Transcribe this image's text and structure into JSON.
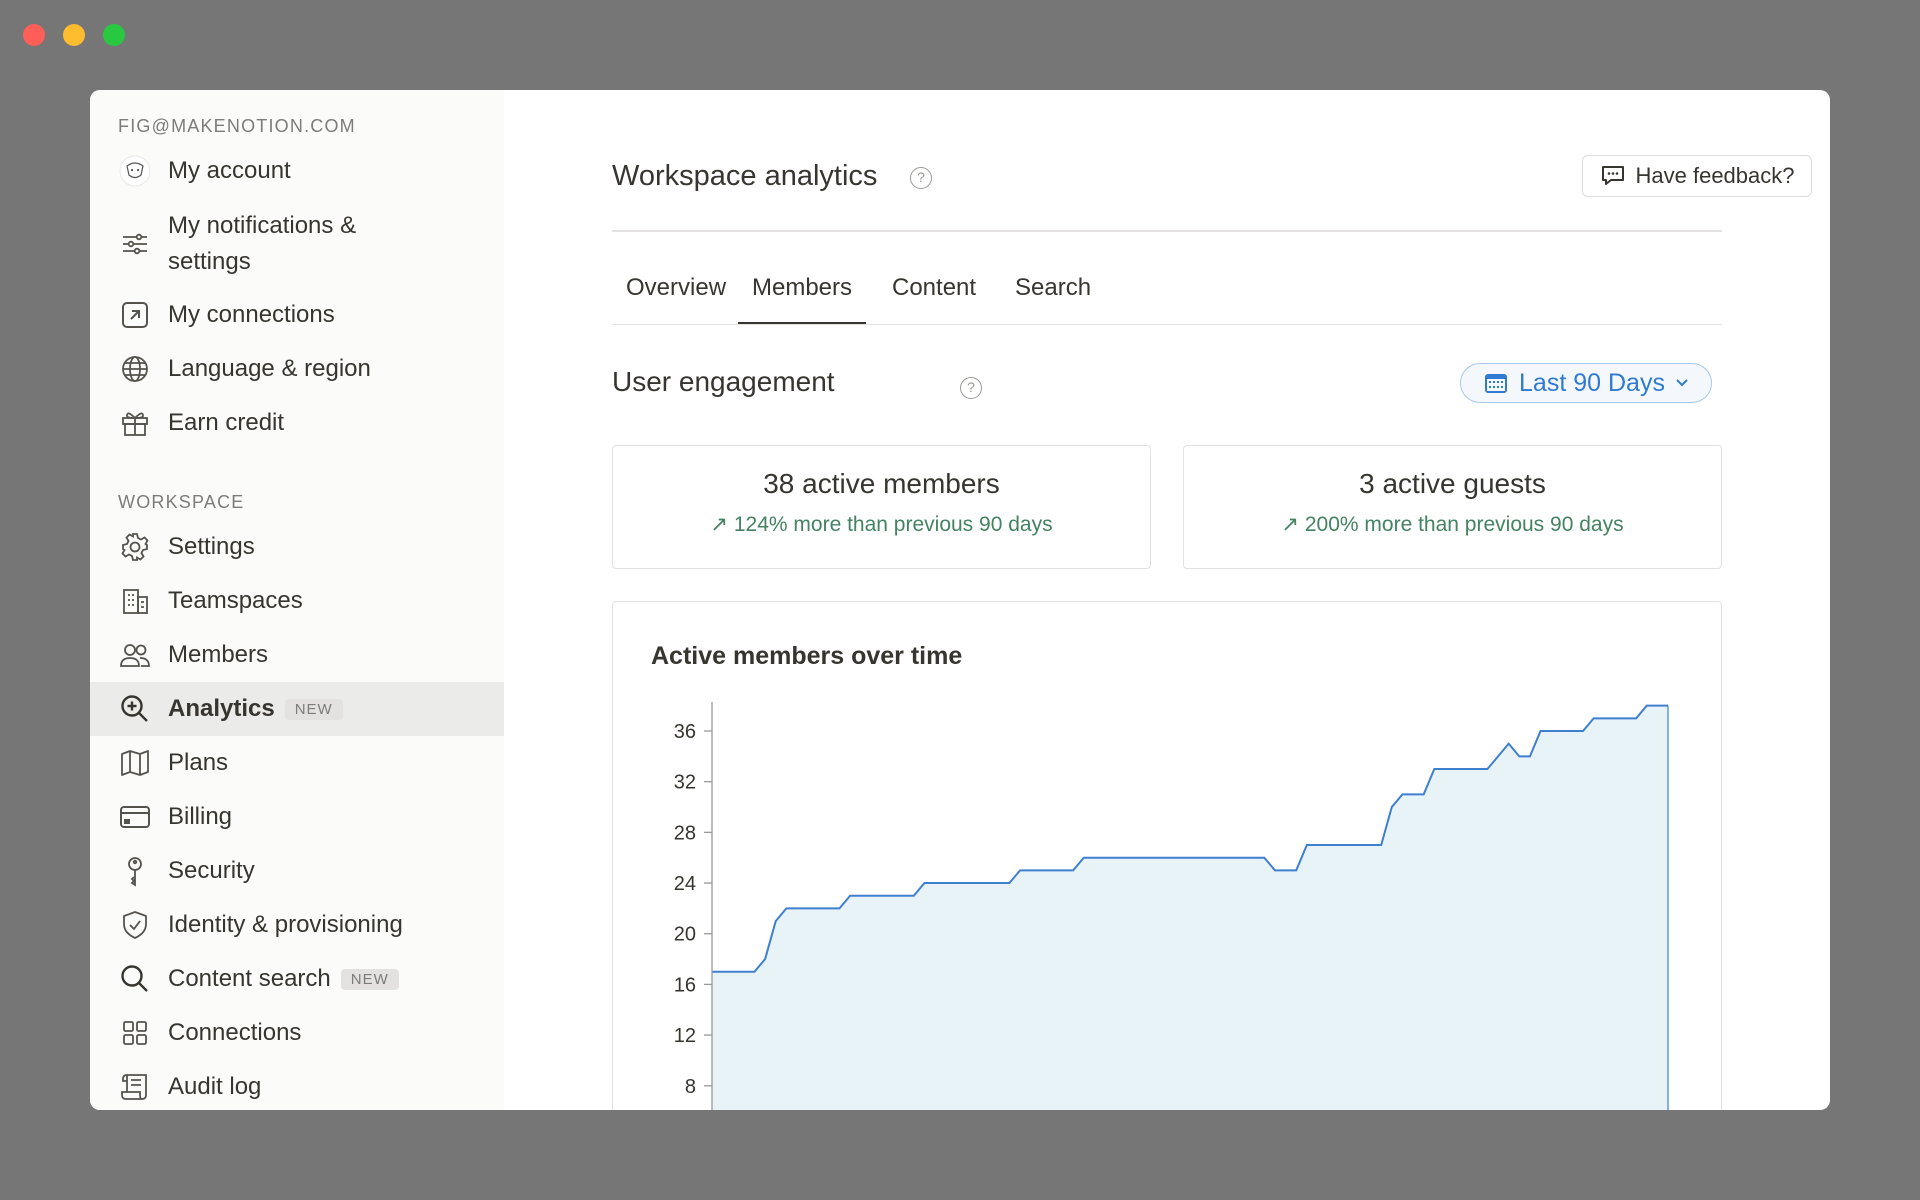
{
  "window": {
    "controls": [
      "close",
      "minimize",
      "zoom"
    ]
  },
  "sidebar": {
    "account_label": "FIG@MAKENOTION.COM",
    "account_items": [
      {
        "label": "My account",
        "icon": "avatar"
      },
      {
        "label": "My notifications & settings",
        "icon": "sliders-icon"
      },
      {
        "label": "My connections",
        "icon": "arrow-up-right-square-icon"
      },
      {
        "label": "Language & region",
        "icon": "globe-icon"
      },
      {
        "label": "Earn credit",
        "icon": "gift-icon"
      }
    ],
    "workspace_label": "WORKSPACE",
    "workspace_items": [
      {
        "label": "Settings",
        "icon": "gear-icon"
      },
      {
        "label": "Teamspaces",
        "icon": "building-icon"
      },
      {
        "label": "Members",
        "icon": "people-icon"
      },
      {
        "label": "Analytics",
        "icon": "zoom-in-icon",
        "badge": "NEW",
        "active": true
      },
      {
        "label": "Plans",
        "icon": "map-icon"
      },
      {
        "label": "Billing",
        "icon": "credit-card-icon"
      },
      {
        "label": "Security",
        "icon": "key-icon"
      },
      {
        "label": "Identity & provisioning",
        "icon": "shield-check-icon"
      },
      {
        "label": "Content search",
        "icon": "search-icon",
        "badge": "NEW"
      },
      {
        "label": "Connections",
        "icon": "grid-icon"
      },
      {
        "label": "Audit log",
        "icon": "scroll-icon"
      }
    ]
  },
  "header": {
    "title": "Workspace analytics",
    "help": "?",
    "feedback_label": "Have feedback?"
  },
  "tabs": [
    {
      "label": "Overview"
    },
    {
      "label": "Members",
      "selected": true
    },
    {
      "label": "Content"
    },
    {
      "label": "Search"
    }
  ],
  "engagement": {
    "title": "User engagement",
    "help": "?",
    "date_range": "Last 90 Days"
  },
  "stats": [
    {
      "title": "38 active members",
      "delta": "124% more than previous 90 days"
    },
    {
      "title": "3 active guests",
      "delta": "200% more than previous 90 days"
    }
  ],
  "colors": {
    "accent": "#2f7ad2",
    "positive": "#448361",
    "line": "#3f7fcf",
    "fill": "#e8f3f8"
  },
  "chart_data": {
    "type": "area",
    "title": "Active members over time",
    "yticks": [
      8,
      12,
      16,
      20,
      24,
      28,
      32,
      36
    ],
    "ylim": [
      0,
      40
    ],
    "grid": false,
    "values": [
      17,
      17,
      17,
      17,
      17,
      18,
      21,
      22,
      22,
      22,
      22,
      22,
      22,
      23,
      23,
      23,
      23,
      23,
      23,
      23,
      24,
      24,
      24,
      24,
      24,
      24,
      24,
      24,
      24,
      25,
      25,
      25,
      25,
      25,
      25,
      26,
      26,
      26,
      26,
      26,
      26,
      26,
      26,
      26,
      26,
      26,
      26,
      26,
      26,
      26,
      26,
      26,
      26,
      25,
      25,
      25,
      27,
      27,
      27,
      27,
      27,
      27,
      27,
      27,
      30,
      31,
      31,
      31,
      33,
      33,
      33,
      33,
      33,
      33,
      34,
      35,
      34,
      34,
      36,
      36,
      36,
      36,
      36,
      37,
      37,
      37,
      37,
      37,
      38,
      38,
      38
    ]
  }
}
